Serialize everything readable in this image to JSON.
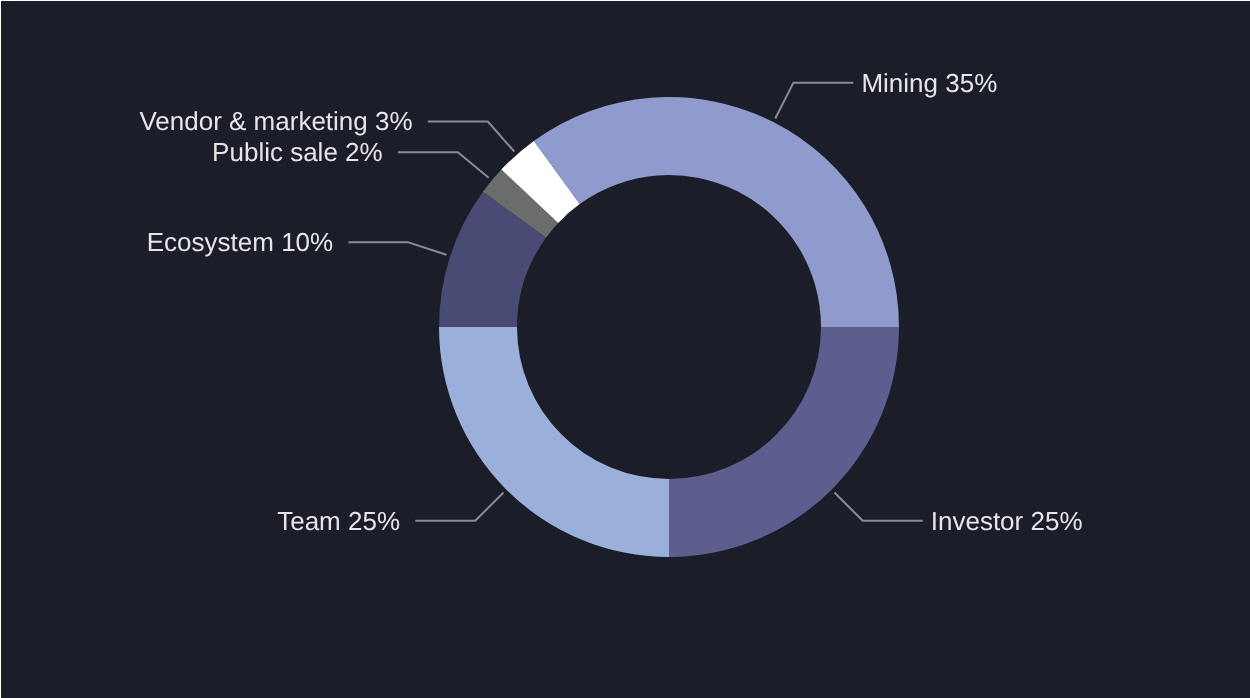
{
  "chart_data": {
    "type": "donut",
    "categories": [
      "Mining",
      "Investor",
      "Team",
      "Ecosystem",
      "Public sale",
      "Vendor & marketing"
    ],
    "values": [
      35,
      25,
      25,
      10,
      2,
      3
    ],
    "value_labels": [
      "35%",
      "25%",
      "25%",
      "10%",
      "2%",
      "3%"
    ],
    "colors": [
      "#8f9bcd",
      "#5c5e8e",
      "#9aafd9",
      "#494b75",
      "#6b6d6a",
      "#ffffff"
    ]
  }
}
